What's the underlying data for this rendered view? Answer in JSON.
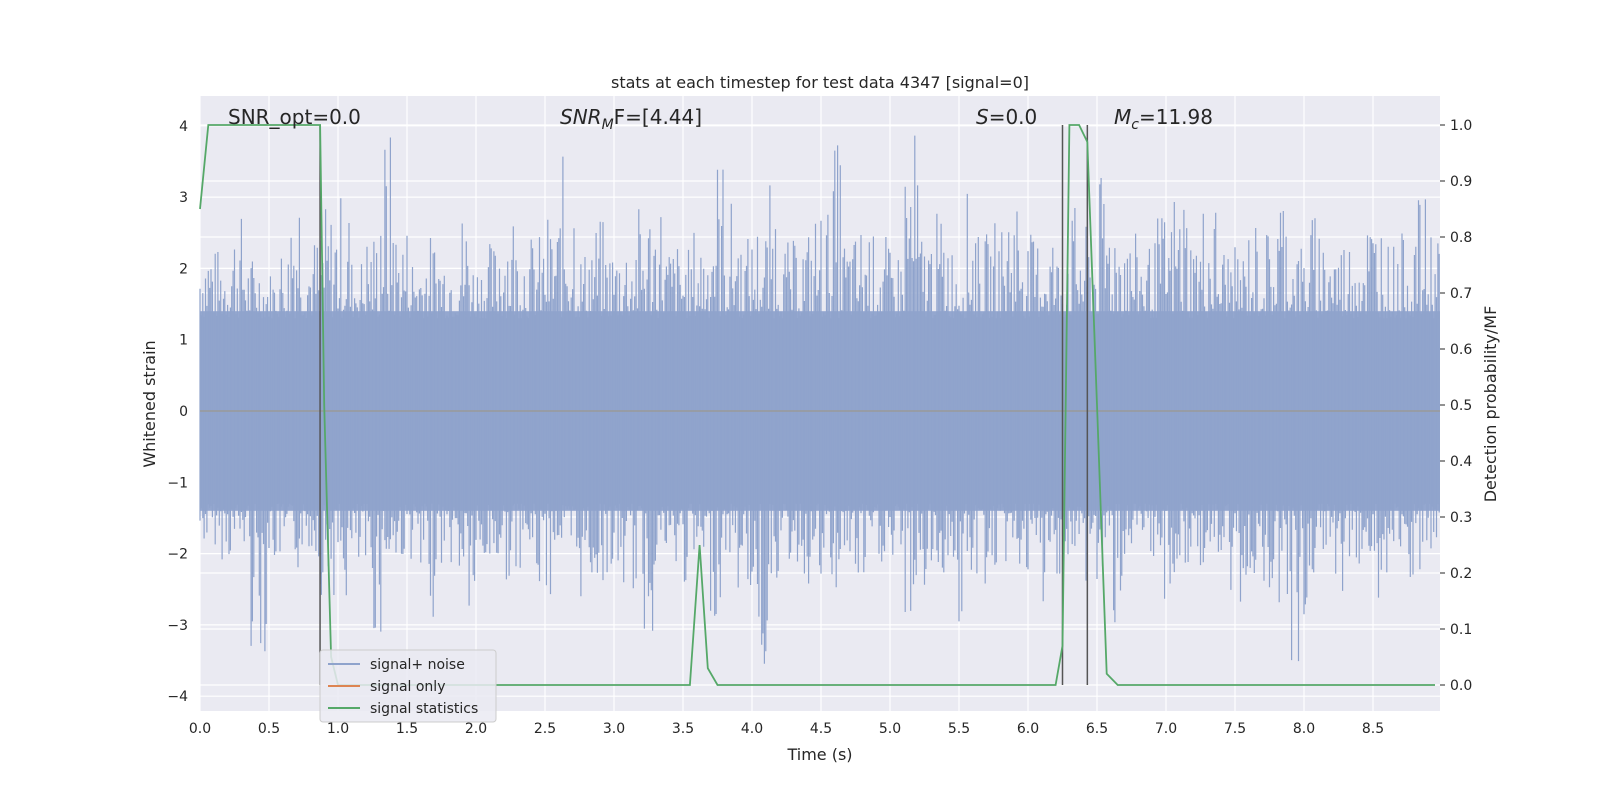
{
  "chart_data": {
    "type": "line",
    "title": "stats at each timestep for test data 4347 [signal=0]",
    "xlabel": "Time (s)",
    "ylabel": "Whitened strain",
    "ylabel_right": "Detection probability/MF",
    "xlim": [
      0.0,
      9.0
    ],
    "ylim": [
      -4.2,
      4.4
    ],
    "ylim_right": [
      -0.05,
      1.05
    ],
    "x_ticks": [
      "0.0",
      "0.5",
      "1.0",
      "1.5",
      "2.0",
      "2.5",
      "3.0",
      "3.5",
      "4.0",
      "4.5",
      "5.0",
      "5.5",
      "6.0",
      "6.5",
      "7.0",
      "7.5",
      "8.0",
      "8.5"
    ],
    "y_ticks": [
      "4",
      "3",
      "2",
      "1",
      "0",
      "−1",
      "−2",
      "−3",
      "−4"
    ],
    "y_ticks_right": [
      "1.0",
      "0.9",
      "0.8",
      "0.7",
      "0.6",
      "0.5",
      "0.4",
      "0.3",
      "0.2",
      "0.1",
      "0.0"
    ],
    "grid": true,
    "legend_position": "lower-left",
    "annotations": {
      "snr_opt": "SNR_opt=0.0",
      "snr_mf_main": "SNR",
      "snr_mf_sub": "M",
      "snr_mf_tail": "F=[4.44]",
      "s_main": "S",
      "s_tail": "=0.0",
      "mc_main": "M",
      "mc_sub": "c",
      "mc_tail": "=11.98"
    },
    "series": [
      {
        "name": "signal+ noise",
        "color": "#8fa3cc",
        "description_values": "whitened strain noise envelope",
        "upper_envelope_samples": [
          2.6,
          2.3,
          2.8,
          2.2,
          2.0,
          2.4,
          3.7,
          2.5,
          2.9,
          3.1,
          2.2,
          2.6,
          4.0,
          2.7,
          2.3,
          2.5,
          2.4,
          2.9,
          2.2,
          2.4,
          3.0,
          2.6,
          2.5,
          2.8,
          3.6,
          2.3,
          2.7,
          2.4,
          2.5,
          2.9,
          3.1,
          2.4,
          2.3,
          2.6,
          3.7,
          3.0,
          2.5,
          2.7,
          3.2,
          2.4,
          2.6,
          2.9,
          3.8,
          2.5,
          2.7,
          2.5,
          2.3,
          4.0,
          2.6,
          2.8,
          2.4,
          3.1,
          2.5,
          2.7,
          3.3,
          2.5,
          2.7,
          2.3,
          2.9,
          2.6,
          3.3,
          3.0,
          2.5,
          2.4,
          2.8,
          3.2,
          2.6,
          3.0,
          2.4,
          2.3,
          2.7,
          2.6,
          3.3,
          2.4,
          2.8,
          2.6,
          2.5,
          2.8,
          2.9,
          2.4,
          2.5,
          3.0,
          2.7
        ],
        "lower_envelope_samples": [
          -1.9,
          -2.1,
          -2.0,
          -3.4,
          -2.2,
          -2.3,
          -2.0,
          -2.6,
          -2.8,
          -2.5,
          -3.2,
          -2.4,
          -2.1,
          -2.9,
          -2.2,
          -2.5,
          -3.1,
          -2.3,
          -2.4,
          -2.2,
          -2.6,
          -2.0,
          -2.7,
          -2.5,
          -2.4,
          -2.6,
          -3.3,
          -2.2,
          -2.5,
          -2.3,
          -2.9,
          -2.1,
          -2.6,
          -3.8,
          -2.4,
          -2.2,
          -2.5,
          -2.7,
          -2.3,
          -2.6,
          -2.2,
          -2.4,
          -3.0,
          -2.6,
          -2.3,
          -3.2,
          -2.5,
          -2.4,
          -2.2,
          -2.6,
          -2.9,
          -2.3,
          -2.5,
          -2.6,
          -3.0,
          -2.1,
          -2.4,
          -2.7,
          -2.5,
          -2.2,
          -2.3,
          -2.8,
          -2.4,
          -2.5,
          -2.7,
          -3.9,
          -2.4,
          -2.3,
          -2.6,
          -2.2,
          -2.8,
          -2.4,
          -2.5,
          -2.2
        ]
      },
      {
        "name": "signal only",
        "color": "#dd8452",
        "x": [
          0.0,
          9.0
        ],
        "y": [
          0.0,
          0.0
        ]
      },
      {
        "name": "signal statistics",
        "color": "#55a868",
        "axis": "right",
        "x": [
          0.0,
          0.06,
          0.12,
          0.5,
          0.87,
          0.9,
          0.95,
          1.0,
          3.55,
          3.62,
          3.68,
          3.75,
          6.2,
          6.25,
          6.3,
          6.37,
          6.43,
          6.5,
          6.57,
          6.65,
          9.0
        ],
        "y": [
          0.85,
          1.0,
          1.0,
          1.0,
          1.0,
          0.5,
          0.05,
          0.0,
          0.0,
          0.25,
          0.03,
          0.0,
          0.0,
          0.07,
          1.0,
          1.0,
          0.97,
          0.5,
          0.02,
          0.0,
          0.0
        ]
      }
    ],
    "vertical_markers": [
      0.87,
      6.25,
      6.43
    ]
  }
}
